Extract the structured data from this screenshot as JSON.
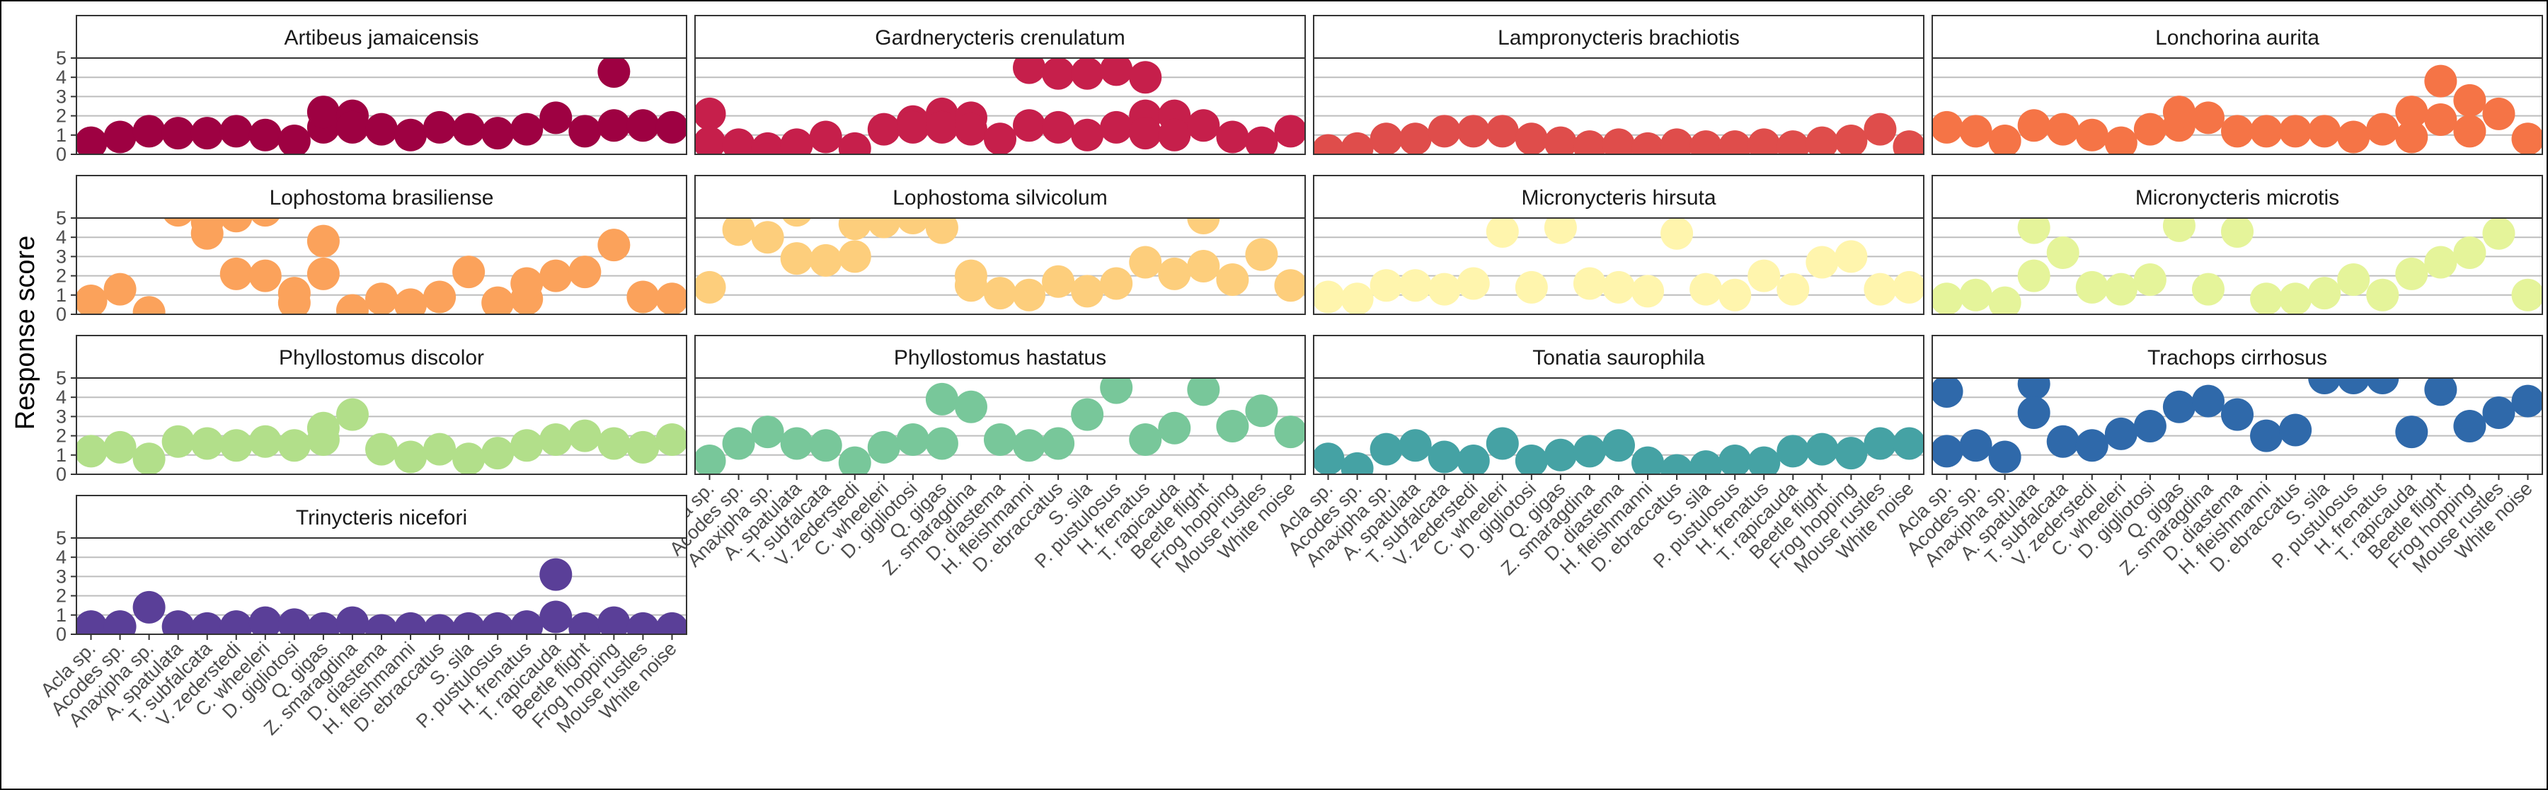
{
  "chart_data": {
    "type": "scatter",
    "ylabel": "Response score",
    "xlabel": "",
    "ylim": [
      0,
      5
    ],
    "yticks": [
      0,
      1,
      2,
      3,
      4,
      5
    ],
    "grid": true,
    "legend": "none",
    "categories": [
      "Acla sp.",
      "Acodes sp.",
      "Anaxipha sp.",
      "A. spatulata",
      "T. subfalcata",
      "V. zederstedi",
      "C. wheeleri",
      "D. gigliotosi",
      "Q. gigas",
      "Z. smaragdina",
      "D. diastema",
      "H. fleishmanni",
      "D. ebraccatus",
      "S. sila",
      "P. pustulosus",
      "H. frenatus",
      "T. rapicauda",
      "Beetle flight",
      "Frog hopping",
      "Mouse rustles",
      "White noise"
    ],
    "panels": [
      {
        "title": "Artibeus jamaicensis",
        "color": "#9e0142",
        "values": [
          [
            0.6
          ],
          [
            0.9
          ],
          [
            1.2
          ],
          [
            1.1
          ],
          [
            1.1
          ],
          [
            1.2
          ],
          [
            1.0
          ],
          [
            0.7
          ],
          [
            1.4,
            2.2
          ],
          [
            2.0,
            1.4
          ],
          [
            1.3
          ],
          [
            1.0
          ],
          [
            1.4
          ],
          [
            1.3
          ],
          [
            1.1
          ],
          [
            1.3
          ],
          [
            1.9
          ],
          [
            1.2
          ],
          [
            1.5,
            4.3
          ],
          [
            1.5
          ],
          [
            1.4
          ]
        ]
      },
      {
        "title": "Gardnerycteris crenulatum",
        "color": "#c61f4b",
        "values": [
          [
            2.1,
            0.6
          ],
          [
            0.5
          ],
          [
            0.3
          ],
          [
            0.5
          ],
          [
            0.9
          ],
          [
            0.3
          ],
          [
            1.3
          ],
          [
            1.7,
            1.4
          ],
          [
            2.1,
            1.4
          ],
          [
            1.9,
            1.3
          ],
          [
            0.8
          ],
          [
            1.5,
            4.5
          ],
          [
            4.2,
            1.4
          ],
          [
            4.2,
            1.0
          ],
          [
            1.4,
            4.4
          ],
          [
            4.0,
            2.0,
            1.1
          ],
          [
            2.0,
            1.0
          ],
          [
            1.5
          ],
          [
            0.9
          ],
          [
            0.6
          ],
          [
            1.2
          ]
        ]
      },
      {
        "title": "Lampronycteris brachiotis",
        "color": "#df4d4b",
        "values": [
          [
            0.2
          ],
          [
            0.3
          ],
          [
            0.8
          ],
          [
            0.8
          ],
          [
            1.2
          ],
          [
            1.2
          ],
          [
            1.2
          ],
          [
            0.8
          ],
          [
            0.6
          ],
          [
            0.4
          ],
          [
            0.5
          ],
          [
            0.3
          ],
          [
            0.5
          ],
          [
            0.4
          ],
          [
            0.4
          ],
          [
            0.5
          ],
          [
            0.4
          ],
          [
            0.6
          ],
          [
            0.7
          ],
          [
            1.3
          ],
          [
            0.4
          ]
        ]
      },
      {
        "title": "Lonchorina aurita",
        "color": "#f57446",
        "values": [
          [
            1.4
          ],
          [
            1.2
          ],
          [
            0.7
          ],
          [
            1.5
          ],
          [
            1.3
          ],
          [
            1.0
          ],
          [
            0.6
          ],
          [
            1.3
          ],
          [
            1.5,
            2.2
          ],
          [
            1.9
          ],
          [
            1.2
          ],
          [
            1.2
          ],
          [
            1.2
          ],
          [
            1.2
          ],
          [
            0.9
          ],
          [
            1.3
          ],
          [
            2.2,
            0.9
          ],
          [
            3.8,
            1.8
          ],
          [
            2.8,
            1.2
          ],
          [
            2.1
          ],
          [
            0.8
          ]
        ]
      },
      {
        "title": "Lophostoma brasiliense",
        "color": "#fba25b",
        "values": [
          [
            0.7
          ],
          [
            1.3
          ],
          [
            0.1
          ],
          [
            5.4
          ],
          [
            4.8,
            4.2
          ],
          [
            5.1,
            2.1
          ],
          [
            5.4,
            2.0
          ],
          [
            1.1,
            0.6
          ],
          [
            3.8,
            2.1
          ],
          [
            0.2
          ],
          [
            0.8
          ],
          [
            0.5
          ],
          [
            0.9
          ],
          [
            2.2
          ],
          [
            0.6
          ],
          [
            0.8,
            1.6
          ],
          [
            2.0
          ],
          [
            2.2
          ],
          [
            3.6
          ],
          [
            0.9
          ],
          [
            0.8
          ]
        ]
      },
      {
        "title": "Lophostoma silvicolum",
        "color": "#fdce7c",
        "values": [
          [
            1.4
          ],
          [
            4.4
          ],
          [
            4.0
          ],
          [
            2.9,
            5.4
          ],
          [
            2.8
          ],
          [
            4.7,
            3.0
          ],
          [
            4.8
          ],
          [
            5.0
          ],
          [
            4.5
          ],
          [
            2.0,
            1.5
          ],
          [
            1.1
          ],
          [
            1.0
          ],
          [
            1.7
          ],
          [
            1.2
          ],
          [
            1.6
          ],
          [
            2.7
          ],
          [
            2.1
          ],
          [
            5.0,
            2.5
          ],
          [
            1.8
          ],
          [
            3.1
          ],
          [
            1.5
          ]
        ]
      },
      {
        "title": "Micronycteris hirsuta",
        "color": "#fff5ad",
        "values": [
          [
            0.9
          ],
          [
            0.8
          ],
          [
            1.5
          ],
          [
            1.5
          ],
          [
            1.3
          ],
          [
            1.6
          ],
          [
            4.3
          ],
          [
            1.4
          ],
          [
            4.5
          ],
          [
            1.6
          ],
          [
            1.4
          ],
          [
            1.2
          ],
          [
            4.2
          ],
          [
            1.3
          ],
          [
            1.0
          ],
          [
            2.0
          ],
          [
            1.3
          ],
          [
            2.7
          ],
          [
            3.0
          ],
          [
            1.3
          ],
          [
            1.4
          ]
        ]
      },
      {
        "title": "Micronycteris microtis",
        "color": "#e5f49a",
        "values": [
          [
            0.8
          ],
          [
            1.0
          ],
          [
            0.6
          ],
          [
            4.5,
            2.0
          ],
          [
            3.2
          ],
          [
            1.4
          ],
          [
            1.3
          ],
          [
            1.8
          ],
          [
            4.6
          ],
          [
            1.3
          ],
          [
            4.3
          ],
          [
            0.8
          ],
          [
            0.8
          ],
          [
            1.1
          ],
          [
            1.8
          ],
          [
            1.0
          ],
          [
            2.1
          ],
          [
            2.7
          ],
          [
            3.2
          ],
          [
            4.2
          ],
          [
            1.0
          ]
        ]
      },
      {
        "title": "Phyllostomus discolor",
        "color": "#b2df8a",
        "values": [
          [
            1.2
          ],
          [
            1.4
          ],
          [
            0.8
          ],
          [
            1.7
          ],
          [
            1.6
          ],
          [
            1.5
          ],
          [
            1.7
          ],
          [
            1.5
          ],
          [
            1.8,
            2.4
          ],
          [
            3.1
          ],
          [
            1.3
          ],
          [
            0.9
          ],
          [
            1.3
          ],
          [
            0.8
          ],
          [
            1.1
          ],
          [
            1.5
          ],
          [
            1.8
          ],
          [
            2.0
          ],
          [
            1.6
          ],
          [
            1.4
          ],
          [
            1.8
          ]
        ]
      },
      {
        "title": "Phyllostomus hastatus",
        "color": "#78c79a",
        "values": [
          [
            0.7
          ],
          [
            1.6
          ],
          [
            2.2
          ],
          [
            1.6
          ],
          [
            1.5
          ],
          [
            0.6
          ],
          [
            1.4
          ],
          [
            1.8
          ],
          [
            3.9,
            1.6
          ],
          [
            3.5
          ],
          [
            1.8
          ],
          [
            1.5
          ],
          [
            1.6
          ],
          [
            3.1
          ],
          [
            4.5
          ],
          [
            1.8
          ],
          [
            2.4
          ],
          [
            4.4
          ],
          [
            2.5
          ],
          [
            3.3
          ],
          [
            2.2
          ]
        ]
      },
      {
        "title": "Tonatia saurophila",
        "color": "#45a2a4",
        "values": [
          [
            0.8
          ],
          [
            0.3
          ],
          [
            1.3
          ],
          [
            1.5
          ],
          [
            0.9
          ],
          [
            0.7
          ],
          [
            1.6
          ],
          [
            0.7
          ],
          [
            1.0
          ],
          [
            1.2
          ],
          [
            1.5
          ],
          [
            0.6
          ],
          [
            0.2
          ],
          [
            0.4
          ],
          [
            0.7
          ],
          [
            0.6
          ],
          [
            1.2
          ],
          [
            1.3
          ],
          [
            1.1
          ],
          [
            1.6
          ],
          [
            1.6
          ]
        ]
      },
      {
        "title": "Trachops cirrhosus",
        "color": "#2f69aa",
        "values": [
          [
            4.3,
            1.2
          ],
          [
            1.5
          ],
          [
            0.9
          ],
          [
            4.7,
            3.2
          ],
          [
            1.7
          ],
          [
            1.5
          ],
          [
            2.1
          ],
          [
            2.5
          ],
          [
            3.5
          ],
          [
            3.8
          ],
          [
            3.1
          ],
          [
            2.0
          ],
          [
            2.3
          ],
          [
            5.0
          ],
          [
            5.0
          ],
          [
            5.0
          ],
          [
            2.2
          ],
          [
            4.4
          ],
          [
            2.5
          ],
          [
            3.2
          ],
          [
            3.8
          ]
        ]
      },
      {
        "title": "Trinycteris nicefori",
        "color": "#5a3f98",
        "values": [
          [
            0.4
          ],
          [
            0.4
          ],
          [
            1.4
          ],
          [
            0.4
          ],
          [
            0.3
          ],
          [
            0.4
          ],
          [
            0.6
          ],
          [
            0.5
          ],
          [
            0.3
          ],
          [
            0.6
          ],
          [
            0.2
          ],
          [
            0.3
          ],
          [
            0.2
          ],
          [
            0.3
          ],
          [
            0.3
          ],
          [
            0.4
          ],
          [
            0.9,
            3.1
          ],
          [
            0.3
          ],
          [
            0.6
          ],
          [
            0.3
          ],
          [
            0.3
          ]
        ]
      }
    ]
  }
}
